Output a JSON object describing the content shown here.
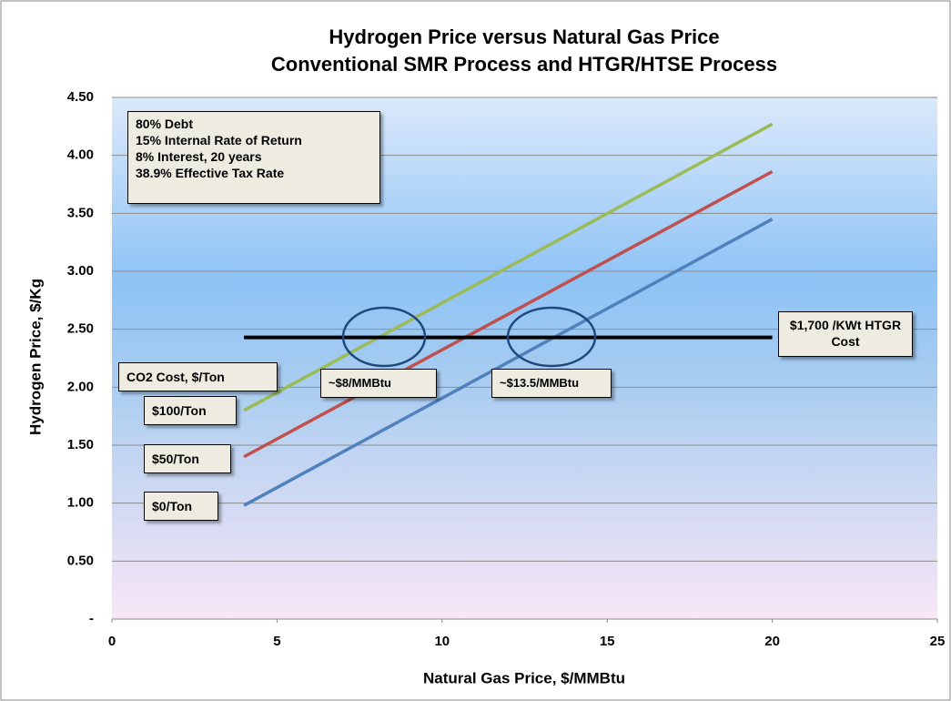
{
  "chart_data": {
    "type": "line",
    "title": "Hydrogen Price versus Natural Gas Price",
    "subtitle": "Conventional SMR Process and HTGR/HTSE Process",
    "x_label": "Natural Gas Price, $/MMBtu",
    "y_label": "Hydrogen Price, $/Kg",
    "x": [
      4,
      20
    ],
    "series": [
      {
        "name": "$100/Ton",
        "color": "#9bbb59",
        "values": [
          1.8,
          4.27
        ]
      },
      {
        "name": "$50/Ton",
        "color": "#c0504d",
        "values": [
          1.4,
          3.86
        ]
      },
      {
        "name": "$0/Ton",
        "color": "#4f81bd",
        "values": [
          0.98,
          3.45
        ]
      },
      {
        "name": "$1,700 /KWt HTGR Cost",
        "color": "#000000",
        "values": [
          2.43,
          2.43
        ]
      }
    ],
    "annotations": {
      "assumptions": [
        "80% Debt",
        "15% Internal Rate of Return",
        "8% Interest, 20 years",
        "38.9% Effective Tax Rate"
      ],
      "legend_title": "CO2 Cost, $/Ton",
      "crossover_1": "~$8/MMBtu",
      "crossover_2": "~$13.5/MMBtu"
    },
    "xlim": [
      0,
      25
    ],
    "xticks": [
      0,
      5,
      10,
      15,
      20,
      25
    ],
    "ylim": [
      0,
      4.5
    ],
    "yticks": [
      {
        "value": 0,
        "label": "-"
      },
      {
        "value": 0.5,
        "label": "0.50"
      },
      {
        "value": 1,
        "label": "1.00"
      },
      {
        "value": 1.5,
        "label": "1.50"
      },
      {
        "value": 2,
        "label": "2.00"
      },
      {
        "value": 2.5,
        "label": "2.50"
      },
      {
        "value": 3,
        "label": "3.00"
      },
      {
        "value": 3.5,
        "label": "3.50"
      },
      {
        "value": 4,
        "label": "4.00"
      },
      {
        "value": 4.5,
        "label": "4.50"
      }
    ],
    "grid": true
  }
}
